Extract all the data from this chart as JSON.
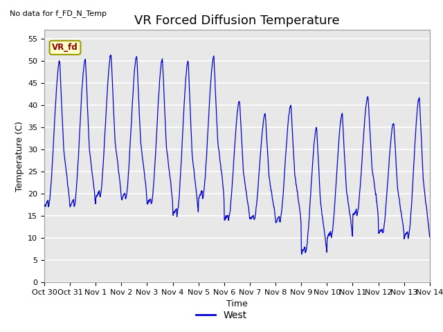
{
  "title": "VR Forced Diffusion Temperature",
  "xlabel": "Time",
  "ylabel": "Temperature (C)",
  "annotation_text": "No data for f_FD_N_Temp",
  "legend_label": "West",
  "line_color": "#0000cc",
  "ylim": [
    0,
    57
  ],
  "yticks": [
    0,
    5,
    10,
    15,
    20,
    25,
    30,
    35,
    40,
    45,
    50,
    55
  ],
  "xtick_labels": [
    "Oct 30",
    "Oct 31",
    "Nov 1",
    "Nov 2",
    "Nov 3",
    "Nov 4",
    "Nov 5",
    "Nov 6",
    "Nov 7",
    "Nov 8",
    "Nov 9",
    "Nov 10",
    "Nov 11",
    "Nov 12",
    "Nov 13",
    "Nov 14"
  ],
  "title_fontsize": 13,
  "tick_fontsize": 8,
  "ylabel_fontsize": 9,
  "xlabel_fontsize": 9,
  "vr_fd_label_text": "VR_fd",
  "vr_fd_label_bg": "#ffffcc",
  "vr_fd_label_border": "#999900",
  "fig_bg": "#ffffff",
  "plot_bg": "#e8e8e8",
  "grid_color": "#ffffff",
  "band_color_light": "#f0f0f0",
  "band_color_dark": "#e0e0e0"
}
